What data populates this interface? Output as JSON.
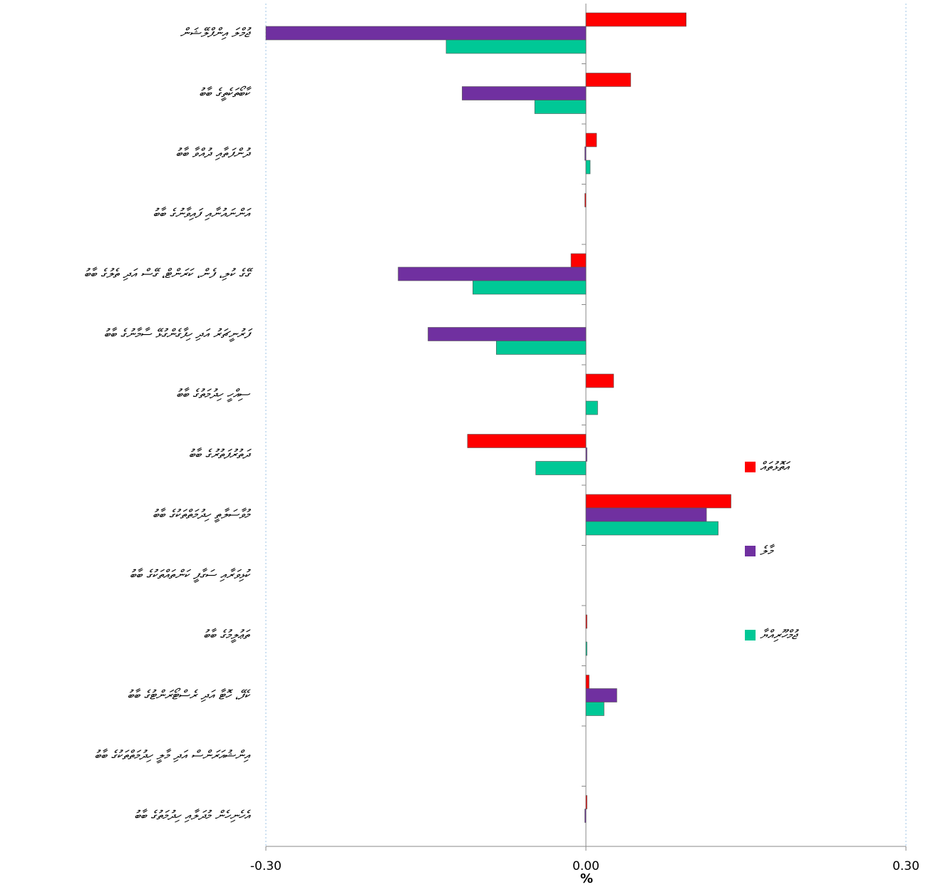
{
  "chart_data": {
    "type": "barh",
    "categories": [
      "ޖުމްލަ އިންފްލޭޝަން",
      "ކާބޯތަކެތީގެ ބާބު",
      "ދުންފަތާއި ދުއްވާ ބާބު",
      "އަންނައުނާއި ފައިވާނުގެ ބާބު",
      "ގޭގެ ކުލި، ފެން، ކަރަންޓް، ގޭސް އަދި ތެލުގެ ބާބު",
      "ފަރުނީޗަރު އަދި ހިފާގެންގުޅޭ ސާމާނުގެ ބާބު",
      "ސިއްހީ ހިދުމަތުގެ ބާބު",
      "ދަތުރުފަތުރުގެ ބާބު",
      "މުވާސަލާތީ ހިދުމަތްތަކުގެ ބާބު",
      "ކުޅިވަރާއި ސަގާފީ ކަންތައްތަކުގެ ބާބު",
      "ތަޢުލީމުގެ ބާބު",
      "ކެފޭ، ހޮޓާ އަދި ރެސްޓޯރަންޓުގެ ބާބު",
      "އިންޝުއަރަންސް އަދި މާލީ ހިދުމަތްތަކުގެ ބާބު",
      "އެހެނިހެން މުދަލާއި ހިދުމަތުގެ ބާބު"
    ],
    "series": [
      {
        "name": "އަތޮޅުތައް",
        "color": "#ff0000",
        "values": [
          0.094,
          0.042,
          0.01,
          -0.001,
          -0.014,
          0,
          0.026,
          -0.111,
          0.136,
          0,
          0.001,
          0.003,
          0,
          0.001
        ]
      },
      {
        "name": "މާލެ",
        "color": "#7030a0",
        "values": [
          -0.3,
          -0.116,
          -0.001,
          0,
          -0.176,
          -0.148,
          0,
          0.001,
          0.113,
          0,
          0,
          0.029,
          0,
          -0.001
        ]
      },
      {
        "name": "ޖުމްހޫރިއްޔާ",
        "color": "#00c896",
        "values": [
          -0.131,
          -0.048,
          0.004,
          0,
          -0.106,
          -0.084,
          0.011,
          -0.047,
          0.124,
          0,
          0.001,
          0.017,
          0,
          0
        ]
      }
    ],
    "xlabel": "%",
    "xlim": [
      -0.3,
      0.3
    ],
    "xticks": [
      {
        "value": -0.3,
        "label": "-0.30"
      },
      {
        "value": 0,
        "label": "0.00"
      },
      {
        "value": 0.3,
        "label": "0.30"
      }
    ],
    "grid": true,
    "legend": "right"
  }
}
